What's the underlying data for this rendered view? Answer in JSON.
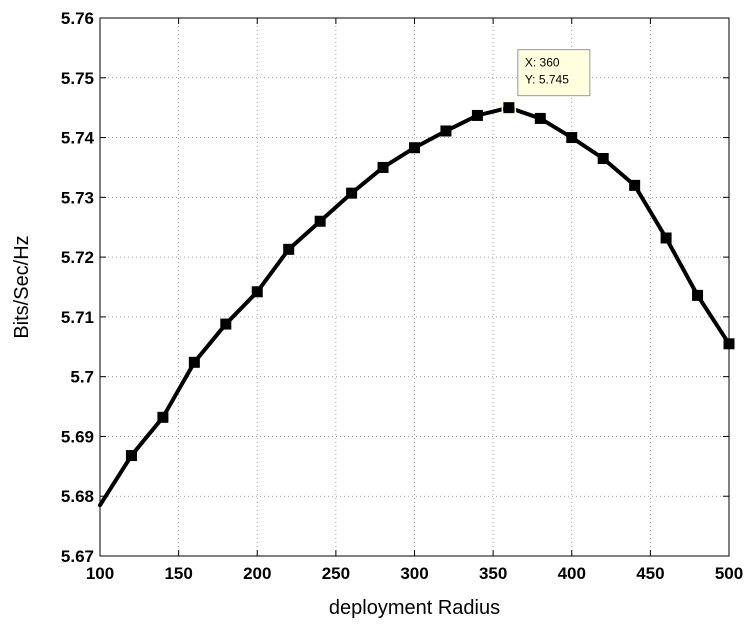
{
  "chart_data": {
    "type": "line",
    "xlabel": "deployment Radius",
    "ylabel": "Bits/Sec/Hz",
    "xlim": [
      100,
      500
    ],
    "ylim": [
      5.67,
      5.76
    ],
    "grid": true,
    "x_ticks": [
      "100",
      "150",
      "200",
      "250",
      "300",
      "350",
      "400",
      "450",
      "500"
    ],
    "y_ticks": [
      "5.67",
      "5.68",
      "5.69",
      "5.7",
      "5.71",
      "5.72",
      "5.73",
      "5.74",
      "5.75",
      "5.76"
    ],
    "series": [
      {
        "color": "#000000",
        "marker": "square",
        "x": [
          100,
          120,
          140,
          160,
          180,
          200,
          220,
          240,
          260,
          280,
          300,
          320,
          340,
          360,
          380,
          400,
          420,
          440,
          460,
          480,
          500
        ],
        "y": [
          5.6785,
          5.6868,
          5.6932,
          5.7024,
          5.7088,
          5.7142,
          5.7213,
          5.726,
          5.7307,
          5.735,
          5.7383,
          5.7411,
          5.7437,
          5.745,
          5.7432,
          5.74,
          5.7365,
          5.732,
          5.7232,
          5.7136,
          5.7055
        ]
      }
    ],
    "datatip": {
      "x_text": "X: 360",
      "y_text": "Y: 5.745",
      "point_index": 13
    }
  }
}
